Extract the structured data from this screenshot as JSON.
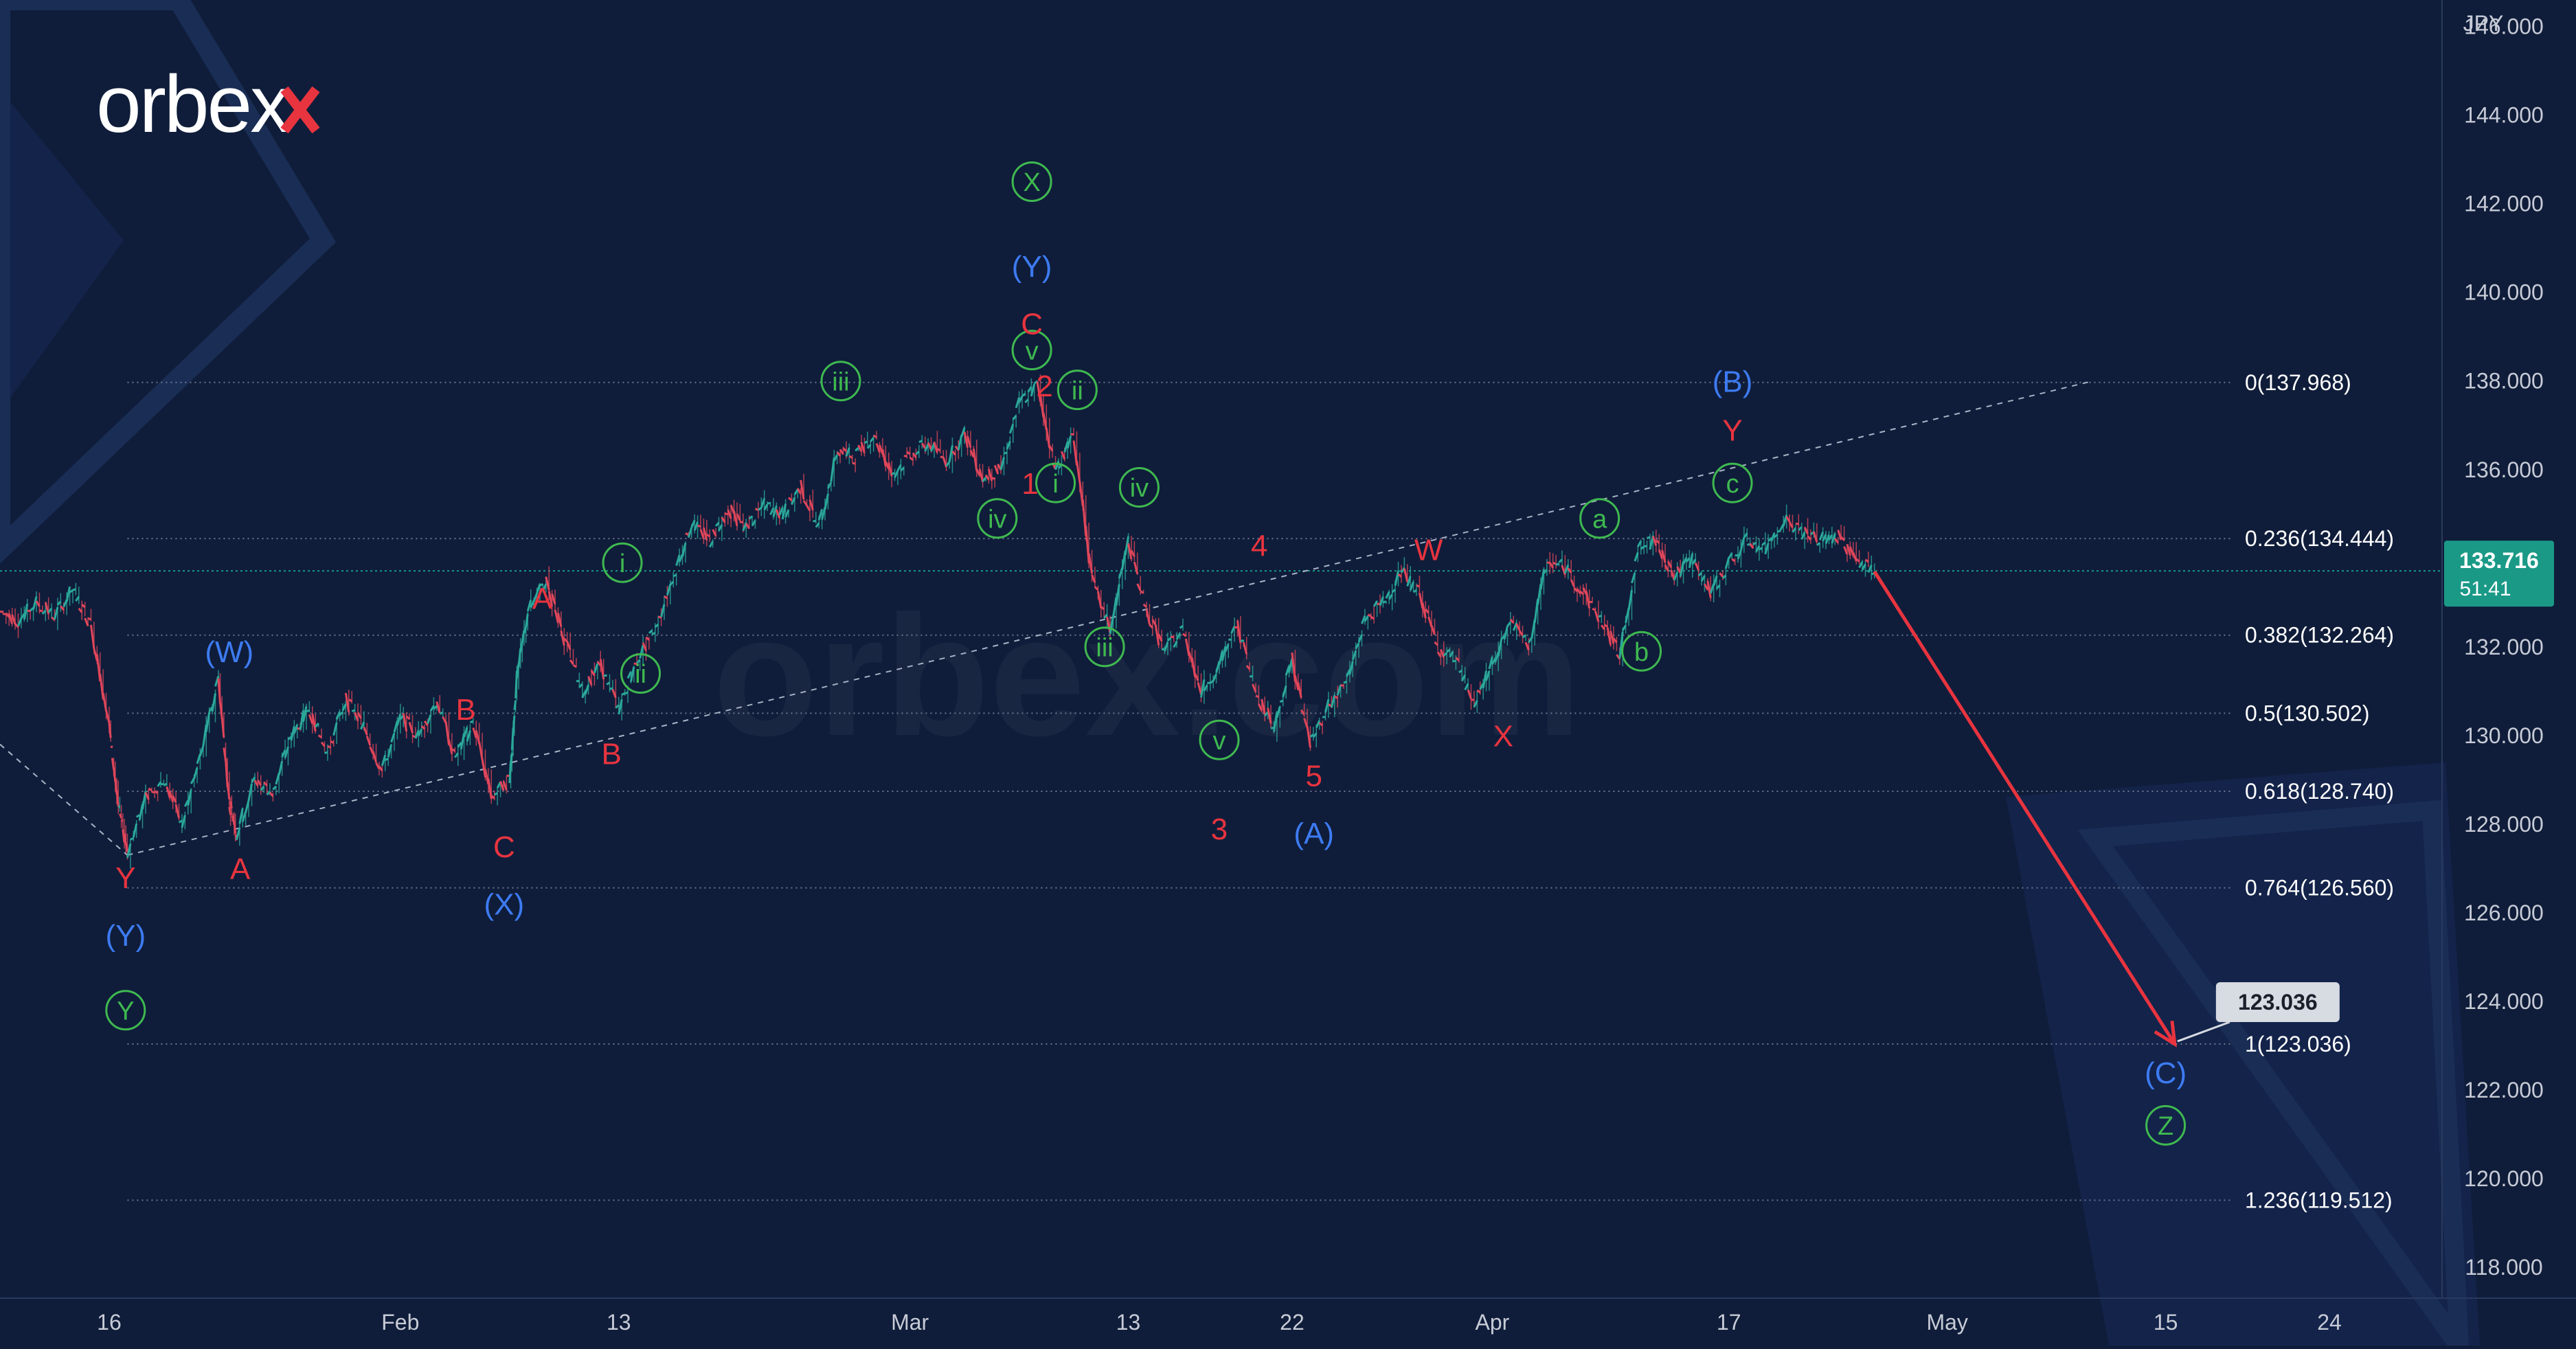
{
  "brand": {
    "logo_text": "orbex",
    "watermark_text": "orbex.com"
  },
  "colors": {
    "background": "#0f1d3a",
    "candle_up": "#2ba89a",
    "candle_down": "#e0465a",
    "label_red": "#e8343f",
    "label_blue": "#3d7bf2",
    "label_green": "#3fb950",
    "forecast_arrow": "#e8343f",
    "price_badge": "#1a9987"
  },
  "chart_data": {
    "type": "line",
    "title": "",
    "instrument_currency": "JPY",
    "y_axis": {
      "ticks": [
        "146.000",
        "144.000",
        "142.000",
        "140.000",
        "138.000",
        "136.000",
        "134.000",
        "132.000",
        "130.000",
        "128.000",
        "126.000",
        "124.000",
        "122.000",
        "120.000",
        "118.000"
      ],
      "range": [
        117.3,
        146.6
      ]
    },
    "x_axis": {
      "tick_labels": [
        "16",
        "Feb",
        "13",
        "Mar",
        "13",
        "22",
        "Apr",
        "17",
        "May",
        "15",
        "24"
      ],
      "tick_days": [
        0,
        16,
        28,
        44,
        56,
        65,
        76,
        89,
        101,
        113,
        122
      ],
      "range_days": [
        -6,
        128
      ]
    },
    "current_price": {
      "value": "133.716",
      "countdown": "51:41"
    },
    "price_path": [
      [
        -6,
        132.8
      ],
      [
        -5,
        132.6
      ],
      [
        -4,
        133.0
      ],
      [
        -3,
        132.7
      ],
      [
        -2,
        133.3
      ],
      [
        -1,
        132.5
      ],
      [
        0,
        130.2
      ],
      [
        0.5,
        128.4
      ],
      [
        1,
        127.4
      ],
      [
        2,
        128.6
      ],
      [
        3,
        129.0
      ],
      [
        4,
        128.0
      ],
      [
        5,
        129.5
      ],
      [
        6,
        131.3
      ],
      [
        6.6,
        128.5
      ],
      [
        7,
        127.8
      ],
      [
        8,
        129.0
      ],
      [
        9,
        128.7
      ],
      [
        10,
        130.0
      ],
      [
        11,
        130.6
      ],
      [
        12,
        129.6
      ],
      [
        13,
        130.8
      ],
      [
        14,
        130.2
      ],
      [
        15,
        129.2
      ],
      [
        16,
        130.4
      ],
      [
        17,
        130.0
      ],
      [
        18,
        130.8
      ],
      [
        19,
        129.5
      ],
      [
        20,
        130.3
      ],
      [
        21,
        128.6
      ],
      [
        22,
        129.0
      ],
      [
        22.4,
        131.3
      ],
      [
        23,
        132.8
      ],
      [
        24,
        133.5
      ],
      [
        25,
        132.2
      ],
      [
        26,
        131.0
      ],
      [
        27,
        131.6
      ],
      [
        28,
        130.6
      ],
      [
        29,
        131.7
      ],
      [
        30,
        132.4
      ],
      [
        31,
        133.6
      ],
      [
        32,
        134.8
      ],
      [
        33,
        134.4
      ],
      [
        34,
        135.1
      ],
      [
        35,
        134.7
      ],
      [
        36,
        135.2
      ],
      [
        37,
        135.0
      ],
      [
        38,
        135.6
      ],
      [
        39,
        134.7
      ],
      [
        40,
        136.4
      ],
      [
        41,
        136.3
      ],
      [
        42,
        136.8
      ],
      [
        43,
        135.9
      ],
      [
        44,
        136.3
      ],
      [
        45,
        136.6
      ],
      [
        46,
        136.2
      ],
      [
        47,
        136.8
      ],
      [
        48,
        135.8
      ],
      [
        49,
        136.0
      ],
      [
        50,
        137.5
      ],
      [
        51,
        137.9
      ],
      [
        52,
        136.0
      ],
      [
        53,
        136.8
      ],
      [
        54,
        133.5
      ],
      [
        55,
        132.4
      ],
      [
        56,
        134.4
      ],
      [
        57,
        132.8
      ],
      [
        58,
        131.9
      ],
      [
        59,
        132.4
      ],
      [
        60,
        131.0
      ],
      [
        61,
        131.6
      ],
      [
        62,
        132.5
      ],
      [
        63,
        131.0
      ],
      [
        64,
        130.2
      ],
      [
        65,
        131.7
      ],
      [
        66,
        129.8
      ],
      [
        67,
        130.7
      ],
      [
        68,
        131.2
      ],
      [
        69,
        132.6
      ],
      [
        70,
        133.0
      ],
      [
        71,
        133.7
      ],
      [
        72,
        133.2
      ],
      [
        73,
        132.0
      ],
      [
        74,
        131.7
      ],
      [
        75,
        130.7
      ],
      [
        76,
        131.6
      ],
      [
        77,
        132.6
      ],
      [
        78,
        132.0
      ],
      [
        79,
        133.9
      ],
      [
        80,
        133.8
      ],
      [
        81,
        133.2
      ],
      [
        82,
        132.6
      ],
      [
        83,
        131.8
      ],
      [
        84,
        134.2
      ],
      [
        85,
        134.4
      ],
      [
        86,
        133.6
      ],
      [
        87,
        134.0
      ],
      [
        88,
        133.2
      ],
      [
        89,
        133.9
      ],
      [
        90,
        134.4
      ],
      [
        91,
        134.2
      ],
      [
        92,
        134.9
      ],
      [
        93,
        134.6
      ],
      [
        94,
        134.4
      ],
      [
        95,
        134.5
      ],
      [
        96,
        134.0
      ],
      [
        97,
        133.7
      ]
    ],
    "forecast": {
      "from": [
        97,
        133.7
      ],
      "to": [
        113.5,
        123.036
      ],
      "target_label": "123.036"
    },
    "fibonacci_levels": [
      {
        "label": "0(137.968)",
        "price": 137.968
      },
      {
        "label": "0.236(134.444)",
        "price": 134.444
      },
      {
        "label": "0.382(132.264)",
        "price": 132.264
      },
      {
        "label": "0.5(130.502)",
        "price": 130.502
      },
      {
        "label": "0.618(128.740)",
        "price": 128.74
      },
      {
        "label": "0.764(126.560)",
        "price": 126.56
      },
      {
        "label": "1(123.036)",
        "price": 123.036
      },
      {
        "label": "1.236(119.512)",
        "price": 119.512
      }
    ],
    "fib_start_day": 1,
    "trendlines": [
      {
        "style": "dashed",
        "from": [
          -6,
          129.8
        ],
        "to": [
          1,
          127.3
        ]
      },
      {
        "style": "dashed",
        "from": [
          1,
          127.3
        ],
        "to": [
          109,
          138.0
        ]
      }
    ],
    "wave_labels": [
      {
        "text": "Y",
        "day": 0.9,
        "price": 126.8,
        "color": "red",
        "circle": false
      },
      {
        "text": "(Y)",
        "day": 0.9,
        "price": 125.5,
        "color": "blue",
        "circle": false
      },
      {
        "text": "Y",
        "day": 0.9,
        "price": 123.8,
        "color": "green",
        "circle": true
      },
      {
        "text": "(W)",
        "day": 6.6,
        "price": 131.9,
        "color": "blue",
        "circle": false
      },
      {
        "text": "A",
        "day": 7.2,
        "price": 127.0,
        "color": "red",
        "circle": false
      },
      {
        "text": "B",
        "day": 19.6,
        "price": 130.6,
        "color": "red",
        "circle": false
      },
      {
        "text": "C",
        "day": 21.7,
        "price": 127.5,
        "color": "red",
        "circle": false
      },
      {
        "text": "(X)",
        "day": 21.7,
        "price": 126.2,
        "color": "blue",
        "circle": false
      },
      {
        "text": "A",
        "day": 23.8,
        "price": 133.1,
        "color": "red",
        "circle": false
      },
      {
        "text": "B",
        "day": 27.6,
        "price": 129.6,
        "color": "red",
        "circle": false
      },
      {
        "text": "i",
        "day": 28.2,
        "price": 133.9,
        "color": "green",
        "circle": true
      },
      {
        "text": "ii",
        "day": 29.2,
        "price": 131.4,
        "color": "green",
        "circle": true
      },
      {
        "text": "iii",
        "day": 40.2,
        "price": 138.0,
        "color": "green",
        "circle": true
      },
      {
        "text": "iv",
        "day": 48.8,
        "price": 134.9,
        "color": "green",
        "circle": true
      },
      {
        "text": "v",
        "day": 50.7,
        "price": 138.7,
        "color": "green",
        "circle": true
      },
      {
        "text": "X",
        "day": 50.7,
        "price": 142.5,
        "color": "green",
        "circle": true
      },
      {
        "text": "(Y)",
        "day": 50.7,
        "price": 140.6,
        "color": "blue",
        "circle": false
      },
      {
        "text": "C",
        "day": 50.7,
        "price": 139.3,
        "color": "red",
        "circle": false
      },
      {
        "text": "2",
        "day": 51.4,
        "price": 137.9,
        "color": "red",
        "circle": false
      },
      {
        "text": "1",
        "day": 50.6,
        "price": 135.7,
        "color": "red",
        "circle": false
      },
      {
        "text": "i",
        "day": 52.0,
        "price": 135.7,
        "color": "green",
        "circle": true
      },
      {
        "text": "ii",
        "day": 53.2,
        "price": 137.8,
        "color": "green",
        "circle": true
      },
      {
        "text": "iv",
        "day": 56.6,
        "price": 135.6,
        "color": "green",
        "circle": true
      },
      {
        "text": "iii",
        "day": 54.7,
        "price": 132.0,
        "color": "green",
        "circle": true
      },
      {
        "text": "4",
        "day": 63.2,
        "price": 134.3,
        "color": "red",
        "circle": false
      },
      {
        "text": "v",
        "day": 61.0,
        "price": 129.9,
        "color": "green",
        "circle": true
      },
      {
        "text": "3",
        "day": 61.0,
        "price": 127.9,
        "color": "red",
        "circle": false
      },
      {
        "text": "5",
        "day": 66.2,
        "price": 129.1,
        "color": "red",
        "circle": false
      },
      {
        "text": "(A)",
        "day": 66.2,
        "price": 127.8,
        "color": "blue",
        "circle": false
      },
      {
        "text": "W",
        "day": 72.5,
        "price": 134.2,
        "color": "red",
        "circle": false
      },
      {
        "text": "X",
        "day": 76.6,
        "price": 130.0,
        "color": "red",
        "circle": false
      },
      {
        "text": "a",
        "day": 81.9,
        "price": 134.9,
        "color": "green",
        "circle": true
      },
      {
        "text": "b",
        "day": 84.2,
        "price": 131.9,
        "color": "green",
        "circle": true
      },
      {
        "text": "c",
        "day": 89.2,
        "price": 135.7,
        "color": "green",
        "circle": true
      },
      {
        "text": "Y",
        "day": 89.2,
        "price": 136.9,
        "color": "red",
        "circle": false
      },
      {
        "text": "(B)",
        "day": 89.2,
        "price": 138.0,
        "color": "blue",
        "circle": false
      },
      {
        "text": "(C)",
        "day": 113.0,
        "price": 122.4,
        "color": "blue",
        "circle": false
      },
      {
        "text": "Z",
        "day": 113.0,
        "price": 121.2,
        "color": "green",
        "circle": true
      }
    ]
  }
}
